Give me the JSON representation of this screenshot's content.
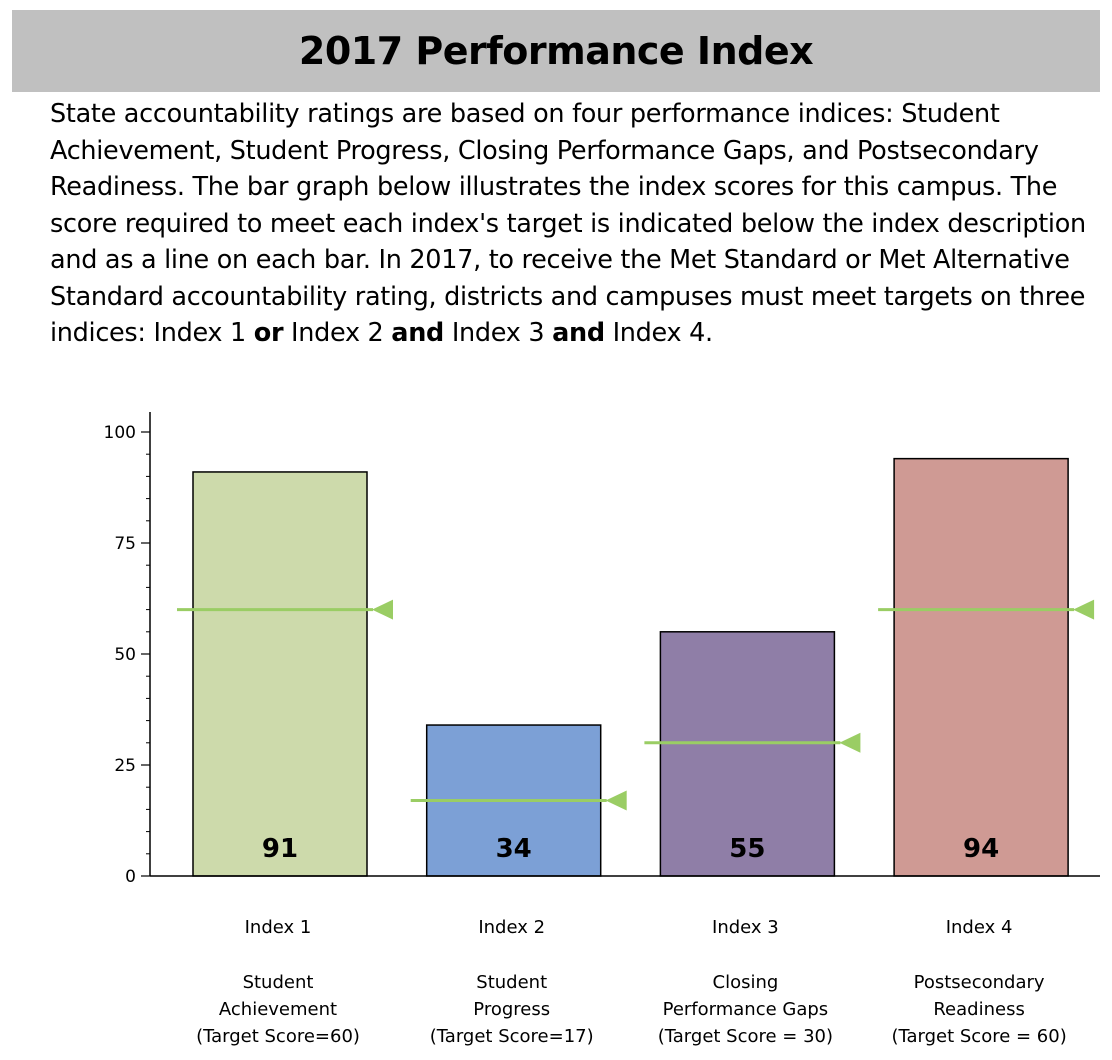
{
  "header": {
    "title": "2017 Performance Index"
  },
  "description": {
    "text_1": "State accountability ratings are based on four performance indices: Student Achievement, Student Progress, Closing Performance Gaps, and Postsecondary Readiness. The bar graph below illustrates the index scores for this campus. The score required to meet each index's target is indicated below the index description and as a line on each bar.  In 2017, to receive the Met Standard or Met Alternative Standard accountability rating, districts and campuses must meet targets on three indices: Index 1 ",
    "or": "or",
    "text_2": " Index 2 ",
    "and_1": "and",
    "text_3": " Index 3 ",
    "and_2": "and",
    "text_4": " Index 4."
  },
  "colors": {
    "target_line": "#9acd64",
    "bar_stroke": "#000000"
  },
  "chart_data": {
    "type": "bar",
    "title": "",
    "xlabel": "",
    "ylabel": "",
    "ylim": [
      0,
      100
    ],
    "yticks": [
      0,
      25,
      50,
      75,
      100
    ],
    "categories": [
      "Index 1",
      "Index 2",
      "Index 3",
      "Index 4"
    ],
    "values": [
      91,
      34,
      55,
      94
    ],
    "targets": [
      60,
      17,
      30,
      60
    ],
    "bar_colors": [
      "#cddaab",
      "#7ca0d6",
      "#8f7ea7",
      "#cf9a94"
    ],
    "descriptions": [
      [
        "Student",
        "Achievement",
        "(Target Score=60)"
      ],
      [
        "Student",
        "Progress",
        "(Target Score=17)"
      ],
      [
        "Closing",
        "Performance Gaps",
        "(Target Score = 30)"
      ],
      [
        "Postsecondary",
        "Readiness",
        "(Target Score = 60)"
      ]
    ]
  }
}
